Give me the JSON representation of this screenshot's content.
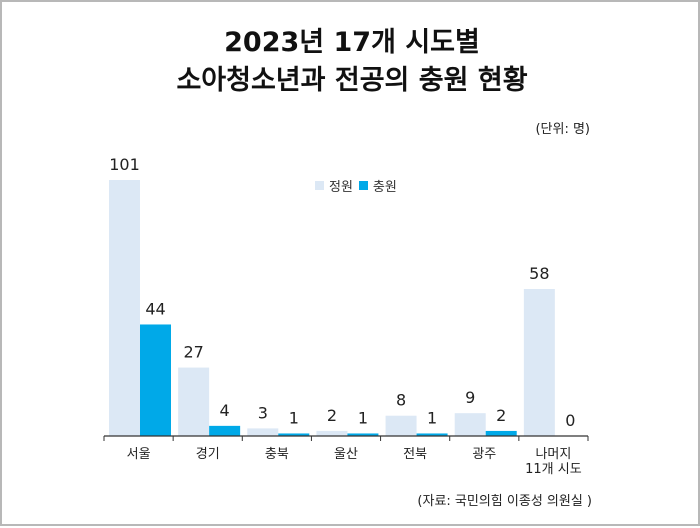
{
  "title_line1": "2023년 17개 시도별",
  "title_line2": "소아청소년과 전공의 충원 현황",
  "unit": "(단위: 명)",
  "source": "(자료: 국민의힘 이종성 의원실 )",
  "colors": {
    "정원": "#dce8f5",
    "충원": "#00a9e8",
    "axis": "#333333"
  },
  "chart_data": {
    "type": "bar",
    "title": "2023년 17개 시도별 소아청소년과 전공의 충원 현황",
    "categories": [
      [
        "서울"
      ],
      [
        "경기"
      ],
      [
        "충북"
      ],
      [
        "울산"
      ],
      [
        "전북"
      ],
      [
        "광주"
      ],
      [
        "나머지",
        "11개 시도"
      ]
    ],
    "series": [
      {
        "name": "정원",
        "values": [
          101,
          27,
          3,
          2,
          8,
          9,
          58
        ]
      },
      {
        "name": "충원",
        "values": [
          44,
          4,
          1,
          1,
          1,
          2,
          0
        ]
      }
    ],
    "ylim": [
      0,
      101
    ],
    "legend": "top-center",
    "grid": false
  }
}
